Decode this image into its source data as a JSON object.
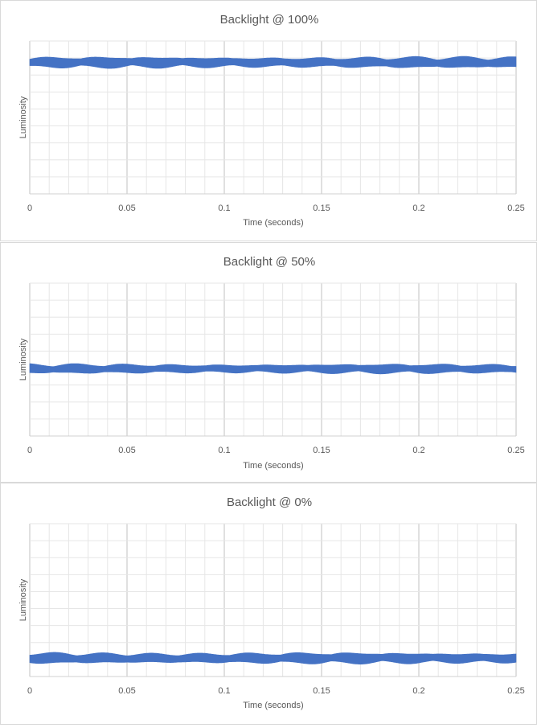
{
  "chart_data": [
    {
      "type": "line",
      "title": "Backlight @ 100%",
      "xlabel": "Time (seconds)",
      "ylabel": "Luminosity",
      "x_ticks": [
        "0",
        "0.05",
        "0.1",
        "0.15",
        "0.2",
        "0.25"
      ],
      "xlim": [
        0,
        0.25
      ],
      "ylim": [
        0,
        1
      ],
      "grid": true,
      "series": [
        {
          "level": 0.86,
          "amplitude": 0.035,
          "color": "#4472c4"
        }
      ]
    },
    {
      "type": "line",
      "title": "Backlight @ 50%",
      "xlabel": "Time (seconds)",
      "ylabel": "Luminosity",
      "x_ticks": [
        "0",
        "0.05",
        "0.1",
        "0.15",
        "0.2",
        "0.25"
      ],
      "xlim": [
        0,
        0.25
      ],
      "ylim": [
        0,
        1
      ],
      "grid": true,
      "series": [
        {
          "level": 0.44,
          "amplitude": 0.03,
          "color": "#4472c4"
        }
      ]
    },
    {
      "type": "line",
      "title": "Backlight @ 0%",
      "xlabel": "Time (seconds)",
      "ylabel": "Luminosity",
      "x_ticks": [
        "0",
        "0.05",
        "0.1",
        "0.15",
        "0.2",
        "0.25"
      ],
      "xlim": [
        0,
        0.25
      ],
      "ylim": [
        0,
        1
      ],
      "grid": true,
      "series": [
        {
          "level": 0.12,
          "amplitude": 0.035,
          "color": "#4472c4"
        }
      ]
    }
  ]
}
